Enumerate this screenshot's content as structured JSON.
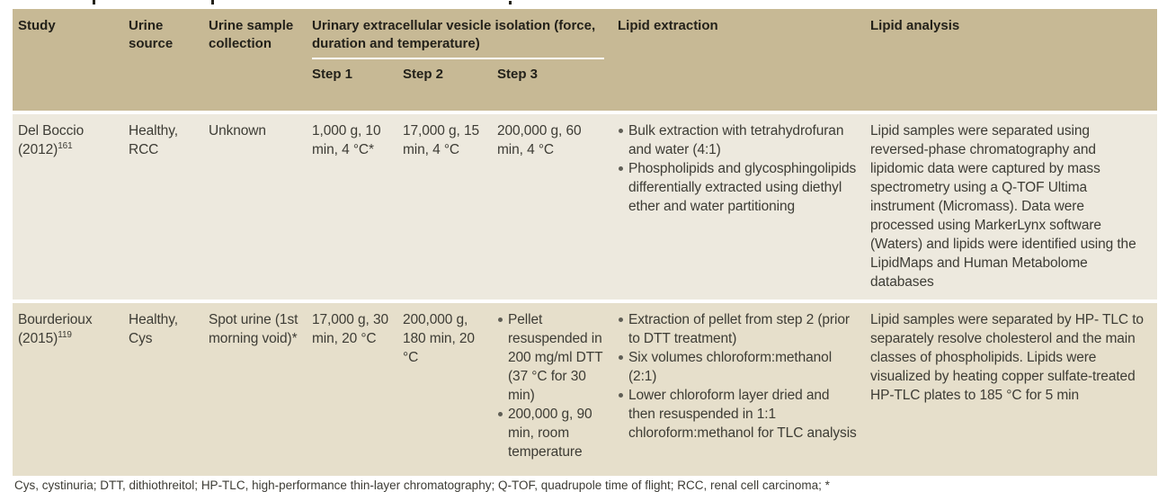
{
  "colors": {
    "header_bg": "#c7b995",
    "row1_bg": "#ede9de",
    "row2_bg": "#e6dfcb",
    "header_text": "#23211a",
    "body_text": "#3d3c35",
    "bullet_dot": "#5f5e55"
  },
  "table": {
    "columns": {
      "study": "Study",
      "urine_source": "Urine source",
      "urine_sample_collection": "Urine sample collection",
      "uev_isolation": "Urinary extracellular vesicle isolation (force, duration and temperature)",
      "step1": "Step 1",
      "step2": "Step 2",
      "step3": "Step 3",
      "lipid_extraction": "Lipid extraction",
      "lipid_analysis": "Lipid analysis"
    },
    "rows": [
      {
        "study_name": "Del Boccio",
        "study_year": "(2012)",
        "study_ref": "161",
        "urine_source": "Healthy, RCC",
        "urine_sample_collection": "Unknown",
        "step1": "1,000 g, 10 min, 4 °C*",
        "step2": "17,000 g, 15 min, 4 °C",
        "step3": "200,000 g, 60 min, 4 °C",
        "lipid_extraction": [
          "Bulk extraction with tetrahydrofuran and water (4:1)",
          "Phospholipids and glycosphingolipids differentially extracted using diethyl ether and water partitioning"
        ],
        "lipid_analysis": "Lipid samples were separated using reversed-phase chromatography and lipidomic data were captured by mass spectrometry using a Q-TOF Ultima instrument (Micromass). Data were processed using MarkerLynx software (Waters) and lipids were identified using the LipidMaps and Human Metabolome databases"
      },
      {
        "study_name": "Bourderioux",
        "study_year": "(2015)",
        "study_ref": "119",
        "urine_source": "Healthy, Cys",
        "urine_sample_collection": "Spot urine (1st morning void)*",
        "step1": "17,000 g, 30 min, 20 °C",
        "step2": "200,000 g, 180 min, 20 °C",
        "step3_bullets": [
          "Pellet resuspended in 200 mg/ml DTT (37 °C for 30 min)",
          "200,000 g, 90 min, room temperature"
        ],
        "lipid_extraction": [
          "Extraction of pellet from step 2 (prior to DTT treatment)",
          "Six volumes chloroform:methanol (2:1)",
          "Lower chloroform layer dried and then resuspended in 1:1 chloroform:methanol for TLC analysis"
        ],
        "lipid_analysis": "Lipid samples were separated by HP- TLC to separately resolve cholesterol and the main classes of phospholipids. Lipids were visualized by heating copper sulfate-treated HP-TLC plates to 185 °C for 5 min"
      }
    ]
  },
  "footnote_clipped": "Cys, cystinuria; DTT, dithiothreitol; HP-TLC, high-performance thin-layer chromatography; Q-TOF, quadrupole time of flight; RCC, renal cell carcinoma; *"
}
